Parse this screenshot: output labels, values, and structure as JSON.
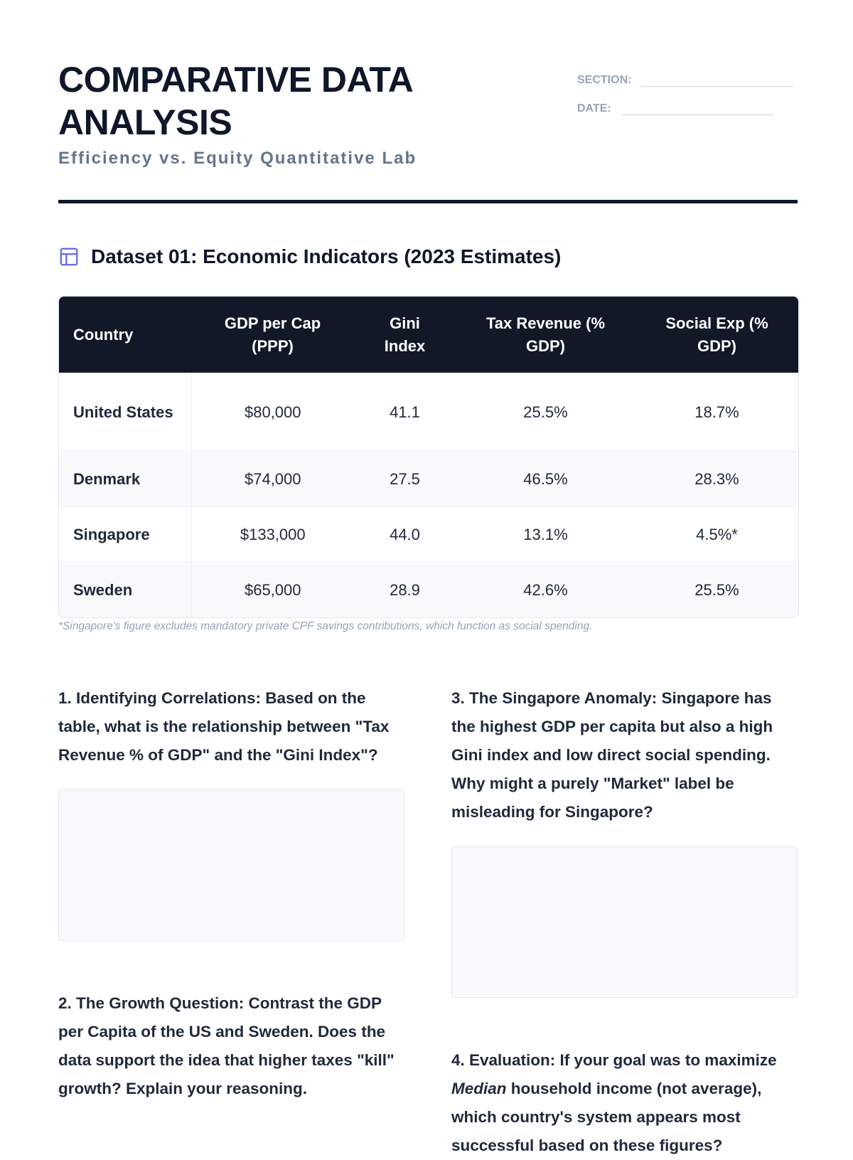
{
  "header": {
    "title": "COMPARATIVE DATA ANALYSIS",
    "subtitle": "Efficiency vs. Equity Quantitative Lab",
    "fields": [
      "SECTION:",
      "DATE:"
    ]
  },
  "dataset": {
    "title": "Dataset 01: Economic Indicators (2023 Estimates)",
    "table": {
      "headers": [
        "Country",
        "GDP per Cap (PPP)",
        "Gini Index",
        "Tax Revenue (% GDP)",
        "Social Exp (% GDP)"
      ],
      "rows": [
        [
          "United States",
          "$80,000",
          "41.1",
          "25.5%",
          "18.7%"
        ],
        [
          "Denmark",
          "$74,000",
          "27.5",
          "46.5%",
          "28.3%"
        ],
        [
          "Singapore",
          "$133,000",
          "44.0",
          "13.1%",
          "4.5%*"
        ],
        [
          "Sweden",
          "$65,000",
          "28.9",
          "42.6%",
          "25.5%"
        ]
      ]
    },
    "footnote": "*Singapore's figure excludes mandatory private CPF savings contributions, which function as social spending."
  },
  "questions": [
    {
      "text": "1. Identifying Correlations: Based on the table, what is the relationship between \"Tax Revenue % of GDP\" and the \"Gini Index\"?"
    },
    {
      "text": "2. The Growth Question: Contrast the GDP per Capita of the US and Sweden. Does the data support the idea that higher taxes \"kill\" growth? Explain your reasoning."
    },
    {
      "text": "3. The Singapore Anomaly: Singapore has the highest GDP per capita but also a high Gini index and low direct social spending. Why might a purely \"Market\" label be misleading for Singapore?"
    },
    {
      "parts": [
        "4. Evaluation: If your goal was to maximize",
        "Median",
        "household income (not average), which country's system appears most successful based on these figures?"
      ]
    }
  ]
}
